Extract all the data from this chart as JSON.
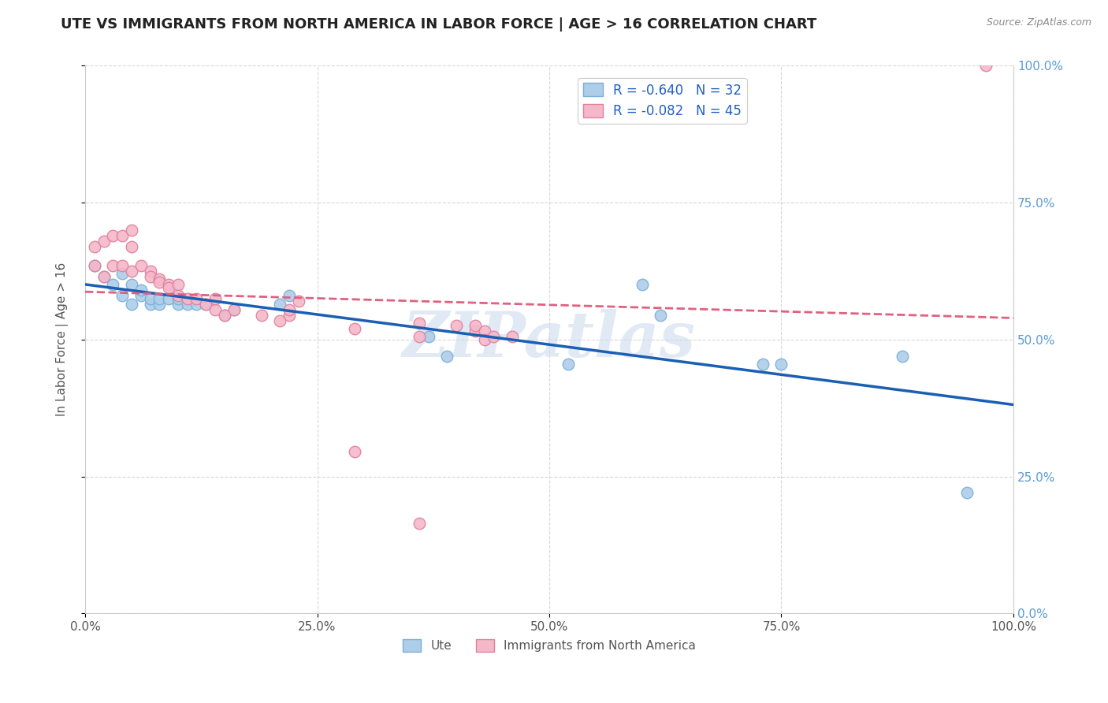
{
  "title": "UTE VS IMMIGRANTS FROM NORTH AMERICA IN LABOR FORCE | AGE > 16 CORRELATION CHART",
  "source_text": "Source: ZipAtlas.com",
  "ylabel": "In Labor Force | Age > 16",
  "xlim": [
    0.0,
    1.0
  ],
  "ylim": [
    0.0,
    1.0
  ],
  "xticks": [
    0.0,
    0.25,
    0.5,
    0.75,
    1.0
  ],
  "yticks": [
    0.0,
    0.25,
    0.5,
    0.75,
    1.0
  ],
  "xtick_labels": [
    "0.0%",
    "25.0%",
    "50.0%",
    "75.0%",
    "100.0%"
  ],
  "ytick_labels": [
    "0.0%",
    "25.0%",
    "50.0%",
    "75.0%",
    "100.0%"
  ],
  "watermark": "ZIPatlas",
  "ute_color": "#aecde8",
  "ute_edge_color": "#7ab0d8",
  "immig_color": "#f4b8c8",
  "immig_edge_color": "#e080a0",
  "trend_ute_color": "#1a5fb4",
  "trend_immig_color": "#e06080",
  "R_ute": -0.64,
  "N_ute": 32,
  "R_immig": -0.082,
  "N_immig": 45,
  "ute_x": [
    0.01,
    0.02,
    0.03,
    0.04,
    0.04,
    0.05,
    0.05,
    0.06,
    0.06,
    0.07,
    0.07,
    0.08,
    0.08,
    0.09,
    0.1,
    0.1,
    0.11,
    0.12,
    0.13,
    0.15,
    0.16,
    0.21,
    0.22,
    0.37,
    0.39,
    0.52,
    0.6,
    0.62,
    0.73,
    0.75,
    0.88,
    0.95
  ],
  "ute_y": [
    0.635,
    0.615,
    0.6,
    0.58,
    0.62,
    0.6,
    0.565,
    0.58,
    0.59,
    0.565,
    0.575,
    0.565,
    0.575,
    0.575,
    0.565,
    0.575,
    0.565,
    0.565,
    0.565,
    0.545,
    0.555,
    0.565,
    0.58,
    0.505,
    0.47,
    0.455,
    0.6,
    0.545,
    0.455,
    0.455,
    0.47,
    0.22
  ],
  "immig_x": [
    0.01,
    0.01,
    0.02,
    0.02,
    0.03,
    0.03,
    0.04,
    0.04,
    0.05,
    0.05,
    0.05,
    0.06,
    0.07,
    0.07,
    0.08,
    0.08,
    0.09,
    0.09,
    0.1,
    0.1,
    0.11,
    0.12,
    0.13,
    0.14,
    0.14,
    0.15,
    0.16,
    0.19,
    0.21,
    0.22,
    0.22,
    0.23,
    0.29,
    0.36,
    0.36,
    0.4,
    0.42,
    0.42,
    0.43,
    0.43,
    0.44,
    0.46,
    0.97,
    0.29,
    0.36
  ],
  "immig_y": [
    0.635,
    0.67,
    0.615,
    0.68,
    0.635,
    0.69,
    0.635,
    0.69,
    0.625,
    0.67,
    0.7,
    0.635,
    0.625,
    0.615,
    0.61,
    0.605,
    0.6,
    0.595,
    0.6,
    0.58,
    0.575,
    0.575,
    0.565,
    0.555,
    0.575,
    0.545,
    0.555,
    0.545,
    0.535,
    0.545,
    0.555,
    0.57,
    0.52,
    0.53,
    0.505,
    0.525,
    0.515,
    0.525,
    0.515,
    0.5,
    0.505,
    0.505,
    1.0,
    0.295,
    0.165
  ],
  "background_color": "#ffffff",
  "grid_color": "#d8d8d8",
  "title_fontsize": 13,
  "label_fontsize": 11,
  "tick_fontsize": 11,
  "marker_size": 110
}
